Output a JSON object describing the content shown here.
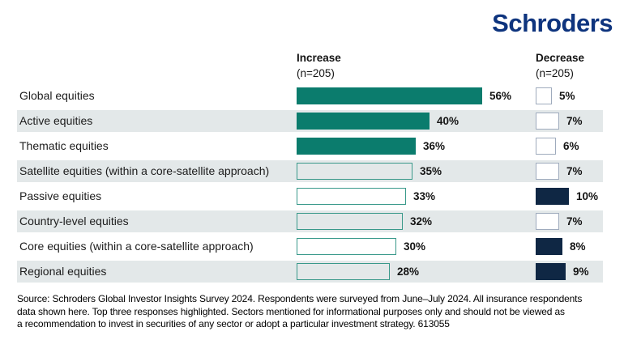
{
  "logo": {
    "part1": "Schr",
    "part2": "o",
    "part3": "ders"
  },
  "chart_data": {
    "type": "bar",
    "orientation": "horizontal",
    "title": "",
    "columns": [
      {
        "label": "Increase",
        "sub": "(n=205)"
      },
      {
        "label": "Decrease",
        "sub": "(n=205)"
      }
    ],
    "unit": "%",
    "rows": [
      {
        "label": "Global equities",
        "increase": 56,
        "decrease": 5,
        "increase_highlight": true,
        "decrease_highlight": false
      },
      {
        "label": "Active equities",
        "increase": 40,
        "decrease": 7,
        "increase_highlight": true,
        "decrease_highlight": false
      },
      {
        "label": "Thematic equities",
        "increase": 36,
        "decrease": 6,
        "increase_highlight": true,
        "decrease_highlight": false
      },
      {
        "label": "Satellite equities (within a core-satellite approach)",
        "increase": 35,
        "decrease": 7,
        "increase_highlight": false,
        "decrease_highlight": false
      },
      {
        "label": "Passive equities",
        "increase": 33,
        "decrease": 10,
        "increase_highlight": false,
        "decrease_highlight": true
      },
      {
        "label": "Country-level equities",
        "increase": 32,
        "decrease": 7,
        "increase_highlight": false,
        "decrease_highlight": false
      },
      {
        "label": "Core equities (within a core-satellite approach)",
        "increase": 30,
        "decrease": 8,
        "increase_highlight": false,
        "decrease_highlight": true
      },
      {
        "label": "Regional equities",
        "increase": 28,
        "decrease": 9,
        "increase_highlight": false,
        "decrease_highlight": true
      }
    ],
    "colors": {
      "increase_fill": "#0B7C6D",
      "increase_outline": "#39998A",
      "decrease_fill": "#0F2744",
      "decrease_outline": "#9FABBD",
      "stripe": "#E3E8E9",
      "logo_blue": "#0E347E"
    }
  },
  "footer": {
    "lines": [
      "Source: Schroders Global Investor Insights Survey 2024. Respondents were surveyed from June–July 2024. All insurance respondents",
      "data shown here. Top three responses highlighted. Sectors mentioned for informational purposes only and should not be viewed as",
      "a recommendation to invest in securities of any sector or adopt a particular investment strategy. 613055"
    ]
  }
}
